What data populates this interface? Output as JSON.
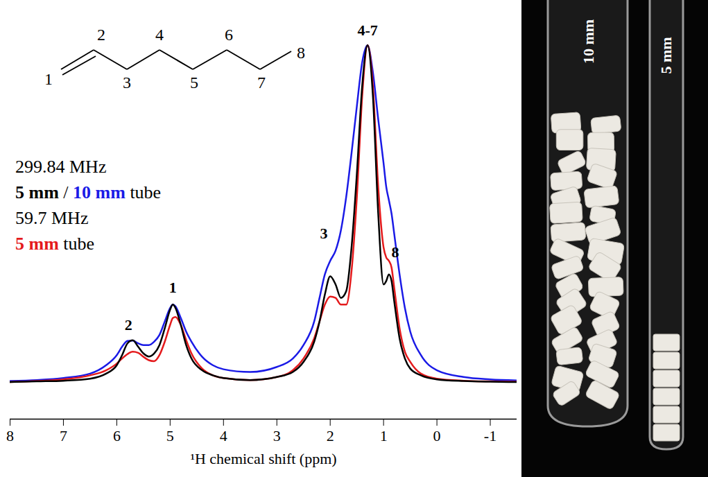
{
  "chart_data": {
    "type": "line",
    "x_label": "¹H chemical shift (ppm)",
    "x": [
      8,
      7.5,
      7,
      6.5,
      6.2,
      6.0,
      5.9,
      5.8,
      5.7,
      5.6,
      5.5,
      5.4,
      5.3,
      5.2,
      5.1,
      5.0,
      4.95,
      4.9,
      4.8,
      4.7,
      4.6,
      4.4,
      4.2,
      4.0,
      3.5,
      3.0,
      2.7,
      2.5,
      2.3,
      2.2,
      2.1,
      2.0,
      1.9,
      1.8,
      1.7,
      1.6,
      1.5,
      1.4,
      1.3,
      1.2,
      1.1,
      1.0,
      0.95,
      0.9,
      0.85,
      0.8,
      0.7,
      0.6,
      0.5,
      0.3,
      0,
      -0.5,
      -1,
      -1.5
    ],
    "series": [
      {
        "name": "10 mm",
        "color": "#1a1ae6",
        "values": [
          0.3,
          0.6,
          1.2,
          2.5,
          5,
          8,
          10.5,
          12.2,
          12.3,
          11.5,
          11,
          11,
          12,
          14,
          18,
          22,
          23,
          22.5,
          19,
          15,
          12,
          7.5,
          5,
          3.8,
          3,
          4.5,
          7,
          11,
          18,
          25,
          32,
          36,
          39,
          45,
          55,
          68,
          82,
          95,
          100,
          92,
          78,
          65,
          58,
          54,
          50,
          44,
          32,
          22,
          15,
          8,
          3.5,
          1.5,
          0.8,
          0.5
        ]
      },
      {
        "name": "5 mm",
        "color": "#e41a1c",
        "values": [
          0,
          0.3,
          0.8,
          2,
          3.5,
          5.5,
          7,
          8.3,
          9,
          8.7,
          7.5,
          6.5,
          6.2,
          8,
          12,
          17,
          19,
          19.3,
          17,
          12.5,
          8.5,
          4,
          2,
          1.2,
          0.6,
          1.5,
          3.5,
          7,
          13,
          18,
          23,
          25.4,
          25,
          23,
          23,
          33,
          55,
          85,
          100,
          88,
          58,
          40,
          37,
          36,
          34,
          28,
          16,
          9,
          6,
          2.5,
          1,
          0.4,
          0.2,
          0.1
        ]
      },
      {
        "name": "5 mm",
        "color": "#000000",
        "values": [
          0,
          0.2,
          0.4,
          1,
          2.5,
          5,
          8,
          11.5,
          12.4,
          10.5,
          8.5,
          7.6,
          8.5,
          11,
          16,
          21.5,
          23,
          22,
          17,
          11,
          7,
          3.5,
          2,
          1.2,
          0.6,
          1.5,
          3,
          6,
          12,
          18,
          26,
          31.4,
          29,
          25,
          27,
          40,
          62,
          88,
          100,
          85,
          50,
          29,
          30,
          32,
          30,
          24,
          13,
          7,
          4,
          2,
          0.8,
          0.3,
          0.1,
          0
        ]
      }
    ],
    "xlim": [
      8,
      -1.5
    ],
    "xticks": [
      8,
      7,
      6,
      5,
      4,
      3,
      2,
      1,
      0,
      -1
    ],
    "ylim": [
      -11,
      108
    ],
    "tick_labels": "x",
    "grid": false,
    "legend": "top-left",
    "legend_text": [
      [
        {
          "text": "299.84 MHz"
        }
      ],
      [
        {
          "text": "5 mm",
          "series": 2
        },
        {
          "text": " / "
        },
        {
          "text": "10 mm",
          "series": 0
        },
        {
          "text": " tube"
        }
      ],
      [
        {
          "text": "59.7 MHz"
        }
      ],
      [
        {
          "text": "5 mm",
          "series": 1
        },
        {
          "text": " tube"
        }
      ]
    ],
    "annotations": [
      {
        "text": "2",
        "x": 5.78,
        "y": 17
      },
      {
        "text": "1",
        "x": 4.95,
        "y": 28
      },
      {
        "text": "3",
        "x": 2.12,
        "y": 44
      },
      {
        "text": "4-7",
        "x": 1.3,
        "y": 104.5
      },
      {
        "text": "8",
        "x": 0.78,
        "y": 38.5
      }
    ]
  },
  "structure": {
    "atom_labels": [
      "1",
      "2",
      "3",
      "4",
      "5",
      "6",
      "7",
      "8"
    ]
  },
  "photo": {
    "labels": [
      "10 mm",
      "5 mm"
    ]
  }
}
